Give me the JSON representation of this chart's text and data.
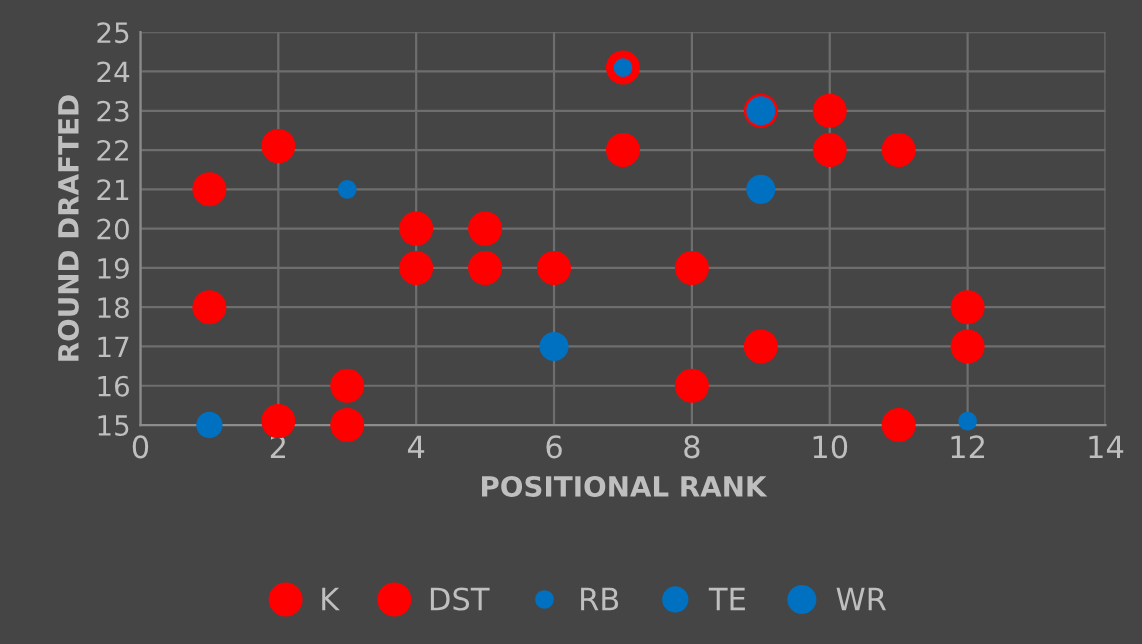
{
  "chart_data": {
    "type": "scatter",
    "xlabel": "POSITIONAL RANK",
    "ylabel": "ROUND DRAFTED",
    "xlim": [
      0,
      14
    ],
    "xticks": [
      0,
      2,
      4,
      6,
      8,
      10,
      12,
      14
    ],
    "ylim": [
      15,
      25
    ],
    "yticks": [
      15,
      16,
      17,
      18,
      19,
      20,
      21,
      22,
      23,
      24,
      25
    ],
    "grid": true,
    "legend": "bottom",
    "marker": "circle",
    "series": [
      {
        "name": "K",
        "color": "#ff0000",
        "x": [
          1,
          1,
          2,
          2,
          3,
          3,
          4,
          4,
          5,
          5,
          6,
          7
        ],
        "values": [
          21,
          18,
          22.1,
          15.1,
          16,
          15,
          20,
          19,
          20,
          19,
          19,
          24.1
        ]
      },
      {
        "name": "DST",
        "color": "#ff0000",
        "x": [
          7,
          8,
          8,
          9,
          9,
          10,
          10,
          11,
          11,
          12,
          12
        ],
        "values": [
          22,
          19,
          16,
          23,
          17,
          23,
          22,
          22,
          15,
          18,
          17
        ]
      },
      {
        "name": "RB",
        "color": "#0070c0",
        "x": [
          3,
          7,
          12
        ],
        "values": [
          21,
          24.1,
          15.1
        ]
      },
      {
        "name": "TE",
        "color": "#0070c0",
        "x": [
          1
        ],
        "values": [
          15
        ]
      },
      {
        "name": "WR",
        "color": "#0070c0",
        "x": [
          6,
          9,
          9
        ],
        "values": [
          17,
          21,
          23
        ]
      }
    ]
  }
}
